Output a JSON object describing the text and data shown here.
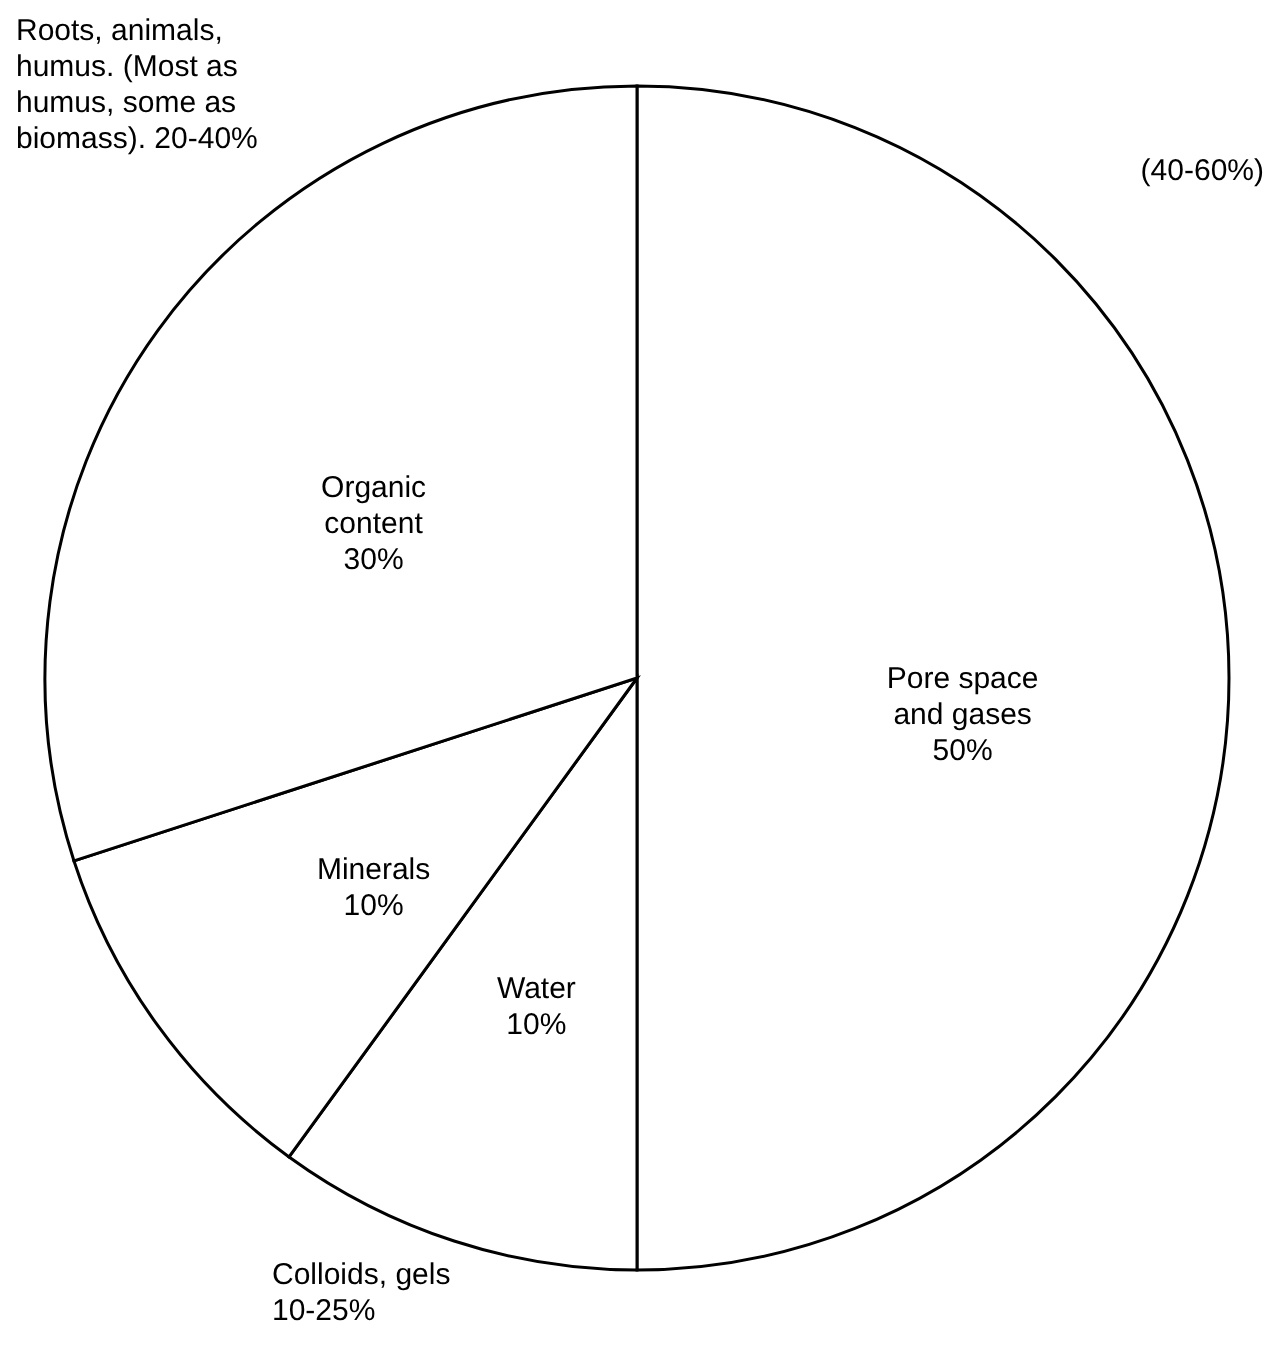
{
  "chart_data": {
    "type": "pie",
    "categories": [
      "Pore space and gases",
      "Water",
      "Minerals",
      "Organic content"
    ],
    "values": [
      50,
      10,
      10,
      30
    ],
    "value_labels": [
      "50%",
      "10%",
      "10%",
      "30%"
    ],
    "colors": [
      "#ffffff",
      "#ffffff",
      "#ffffff",
      "#ffffff"
    ],
    "annotations": [
      "Roots, animals, humus. (Most as humus, some as biomass). 20-40%",
      "(40-60%)",
      "Colloids, gels 10-25%"
    ]
  }
}
